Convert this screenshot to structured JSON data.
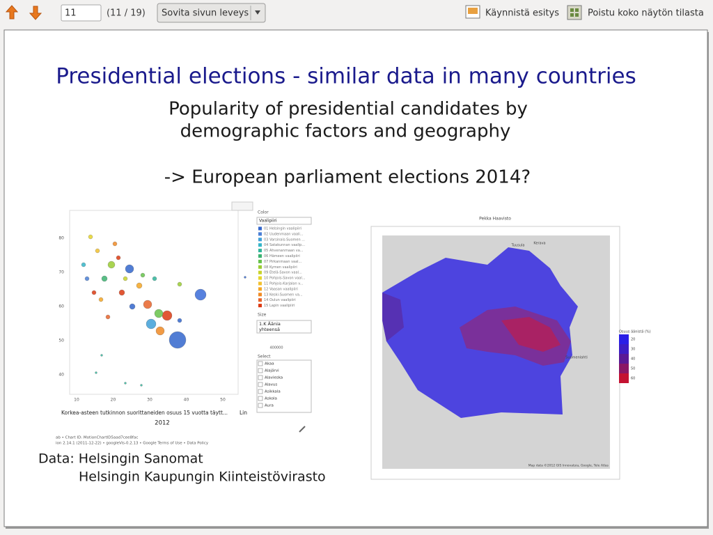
{
  "toolbar": {
    "page_input": "11",
    "page_count": "(11 / 19)",
    "zoom": "Sovita sivun leveys",
    "start_show": "Käynnistä esitys",
    "exit_fullscreen": "Poistu koko näytön tilasta"
  },
  "slide": {
    "title": "Presidential elections - similar data in many countries",
    "subtitle_lines": [
      "Popularity of presidential candidates by",
      "demographic factors and geography"
    ],
    "question": "-> European parliament elections 2014?",
    "credits": [
      "Data: Helsingin Sanomat",
      "Helsingin Kaupungin Kiinteistövirasto"
    ]
  },
  "scatter_image": {
    "yticks": [
      "80",
      "70",
      "60",
      "50",
      "40"
    ],
    "xticks": [
      "10",
      "20",
      "30",
      "40",
      "50"
    ],
    "x_label": "Korkea-asteen tutkinnon suorittaneiden osuus 15 vuotta täytt...",
    "scale": "Lin",
    "year": "2012",
    "footer": [
      "ab • Chart ID: MotionChartID5aad7cee8fac",
      "ion 2.14.1 (2011-12-22) • googleVis-0.2.13 • Google Terms of Use • Data Policy"
    ],
    "color_label": "Color",
    "color_select": "Vaalipiiri",
    "legend": [
      {
        "label": "01 Helsingin vaalipiiri",
        "color": "#3366cc"
      },
      {
        "label": "02 Uudenmaan vaali...",
        "color": "#4a7fd6"
      },
      {
        "label": "03 Varsinais-Suomen ...",
        "color": "#3fa0d8"
      },
      {
        "label": "04 Satakunnan vaalip...",
        "color": "#35b5c8"
      },
      {
        "label": "05 Ahvenanmaan va...",
        "color": "#2fb59a"
      },
      {
        "label": "06 Hämeen vaalipiiri",
        "color": "#3cb371"
      },
      {
        "label": "07 Pirkanmaan vaal...",
        "color": "#66c24a"
      },
      {
        "label": "08 Kymen vaalipiiri",
        "color": "#9acd32"
      },
      {
        "label": "09 Etelä-Savon vaal...",
        "color": "#c8d42a"
      },
      {
        "label": "10 Pohjois-Savon vaal...",
        "color": "#e6d52a"
      },
      {
        "label": "11 Pohjois-Karjalan v...",
        "color": "#f2c12e"
      },
      {
        "label": "12 Vaasan vaalipiiri",
        "color": "#f5a623"
      },
      {
        "label": "13 Keski-Suomen va...",
        "color": "#f08a24"
      },
      {
        "label": "14 Oulun vaalipiiri",
        "color": "#e8642a"
      },
      {
        "label": "15 Lapin vaalipiiri",
        "color": "#dc3912"
      }
    ],
    "size_label": "Size",
    "size_select": [
      "1.K Äänia",
      "yhteensä"
    ],
    "size_value": "400000",
    "select_label": "Select",
    "select_items": [
      "Akaa",
      "Alajärvi",
      "Alavieska",
      "Alavus",
      "Asikkala",
      "Askola",
      "Aura"
    ]
  },
  "map_image": {
    "title": "Pekka Haavisto",
    "legend_title": "Osuus äänistä (%)",
    "legend": [
      {
        "label": "20",
        "color": "#2a1fe6"
      },
      {
        "label": "30",
        "color": "#3d1ec4"
      },
      {
        "label": "40",
        "color": "#5a1a96"
      },
      {
        "label": "50",
        "color": "#8a1766"
      },
      {
        "label": "60",
        "color": "#c41232"
      }
    ],
    "places": [
      "Tuusula",
      "Kerava",
      "Suomenlahti"
    ],
    "attribution": "Map data ©2012 GIS Innovatsia, Google, Tele Atlas"
  }
}
